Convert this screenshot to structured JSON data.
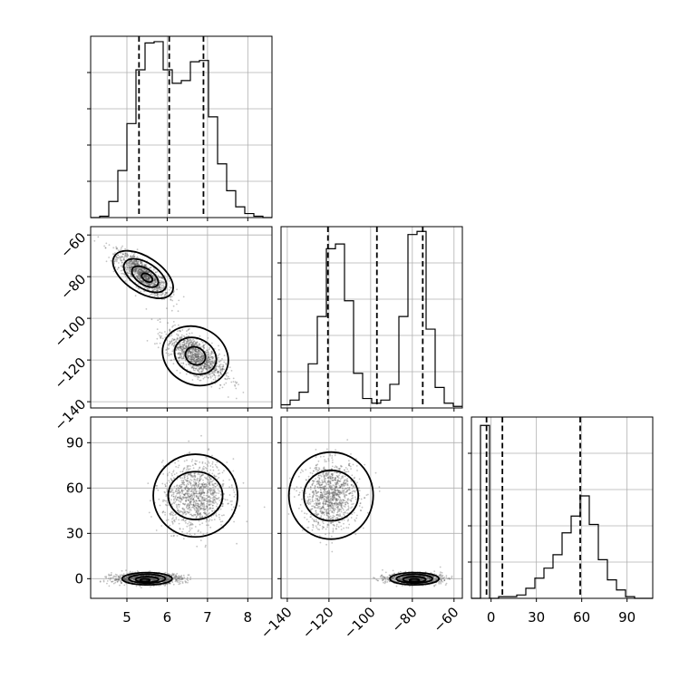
{
  "chart_data": {
    "type": "corner",
    "parameters": [
      {
        "range": [
          4.1,
          8.6
        ],
        "ticks": [
          5,
          6,
          7,
          8
        ],
        "tick_labels": [
          "5",
          "6",
          "7",
          "8"
        ]
      },
      {
        "range": [
          -143,
          -56
        ],
        "ticks": [
          -140,
          -120,
          -100,
          -80,
          -60
        ],
        "tick_labels": [
          "−140",
          "−120",
          "−100",
          "−80",
          "−60"
        ]
      },
      {
        "range": [
          -13,
          107
        ],
        "ticks": [
          0,
          30,
          60,
          90
        ],
        "tick_labels": [
          "0",
          "30",
          "60",
          "90"
        ]
      }
    ],
    "grid": true,
    "histograms": [
      {
        "bin_start": 4.1,
        "bin_width": 0.225,
        "counts": [
          0,
          1,
          12,
          35,
          70,
          110,
          130,
          131,
          110,
          100,
          102,
          116,
          117,
          75,
          40,
          20,
          8,
          3,
          1,
          0
        ],
        "ymax": 135,
        "quantiles": [
          5.3,
          6.05,
          6.9
        ]
      },
      {
        "bin_start": -143,
        "bin_width": 4.35,
        "counts": [
          2,
          5,
          10,
          28,
          58,
          101,
          104,
          68,
          22,
          6,
          3,
          5,
          15,
          58,
          110,
          112,
          50,
          13,
          3,
          1
        ],
        "ymax": 115,
        "quantiles": [
          -120.5,
          -97,
          -75
        ]
      },
      {
        "bin_start": -13,
        "bin_width": 6,
        "counts": [
          0,
          103,
          0,
          1,
          1,
          2,
          6,
          12,
          18,
          26,
          39,
          49,
          61,
          44,
          23,
          11,
          5,
          1,
          0,
          0
        ],
        "ymax": 108,
        "quantiles": [
          -3,
          7.5,
          59
        ]
      }
    ],
    "joint": [
      {
        "x_param": 0,
        "y_param": 1,
        "clusters": [
          {
            "cx": 5.4,
            "cy": -79,
            "sx": 0.32,
            "sy": 5.2,
            "rho": -0.8,
            "n": 1100
          },
          {
            "cx": 6.7,
            "cy": -118,
            "sx": 0.36,
            "sy": 5.8,
            "rho": -0.7,
            "n": 1100
          }
        ],
        "contours": [
          {
            "cx": 5.4,
            "cy": -79,
            "rx": 1.25,
            "ry": 0.45,
            "angle": 33,
            "fill": "#ffffff"
          },
          {
            "cx": 5.45,
            "cy": -79.5,
            "rx": 0.88,
            "ry": 0.32,
            "angle": 33,
            "fill": "#cfcfcf"
          },
          {
            "cx": 5.45,
            "cy": -80,
            "rx": 0.55,
            "ry": 0.2,
            "angle": 33,
            "fill": "#6e6e6e"
          },
          {
            "cx": 5.5,
            "cy": -80.5,
            "rx": 0.22,
            "ry": 0.09,
            "angle": 33,
            "fill": "#000000"
          },
          {
            "cx": 6.7,
            "cy": -118,
            "rx": 1.25,
            "ry": 0.72,
            "angle": 28,
            "fill": "#ffffff"
          },
          {
            "cx": 6.7,
            "cy": -118,
            "rx": 0.8,
            "ry": 0.44,
            "angle": 28,
            "fill": "#cfcfcf"
          },
          {
            "cx": 6.7,
            "cy": -118,
            "rx": 0.38,
            "ry": 0.22,
            "angle": 28,
            "fill": "#666666"
          }
        ]
      },
      {
        "x_param": 0,
        "y_param": 2,
        "clusters": [
          {
            "cx": 6.7,
            "cy": 55,
            "sx": 0.4,
            "sy": 11,
            "rho": 0.05,
            "n": 1100
          },
          {
            "cx": 5.5,
            "cy": 0,
            "sx": 0.42,
            "sy": 1.8,
            "rho": 0.0,
            "n": 1100
          }
        ],
        "contours": [
          {
            "cx": 6.7,
            "cy": 55,
            "rx": 1.55,
            "ry": 0.95,
            "angle": 0,
            "fill": "#ffffff"
          },
          {
            "cx": 6.7,
            "cy": 55,
            "rx": 1.0,
            "ry": 0.55,
            "angle": 0,
            "fill": "#efefef"
          },
          {
            "cx": 5.5,
            "cy": 0,
            "rx": 0.92,
            "ry": 0.14,
            "angle": 0,
            "fill": "#ffffff"
          },
          {
            "cx": 5.5,
            "cy": 0,
            "rx": 0.67,
            "ry": 0.1,
            "angle": 0,
            "fill": "#c4c4c4"
          },
          {
            "cx": 5.5,
            "cy": -0.5,
            "rx": 0.42,
            "ry": 0.065,
            "angle": 0,
            "fill": "#555555"
          },
          {
            "cx": 5.45,
            "cy": -1,
            "rx": 0.18,
            "ry": 0.03,
            "angle": 0,
            "fill": "#000000"
          }
        ]
      },
      {
        "x_param": 1,
        "y_param": 2,
        "clusters": [
          {
            "cx": -119,
            "cy": 55,
            "sx": 6.5,
            "sy": 11,
            "rho": 0.05,
            "n": 1100
          },
          {
            "cx": -79,
            "cy": 0,
            "sx": 6.5,
            "sy": 1.8,
            "rho": 0.0,
            "n": 1100
          }
        ],
        "contours": [
          {
            "cx": -119,
            "cy": 55,
            "rx": 1.55,
            "ry": 1.0,
            "angle": 0,
            "fill": "#ffffff"
          },
          {
            "cx": -119,
            "cy": 55,
            "rx": 1.0,
            "ry": 0.58,
            "angle": 0,
            "fill": "#efefef"
          },
          {
            "cx": -79,
            "cy": 0,
            "rx": 0.9,
            "ry": 0.14,
            "angle": 0,
            "fill": "#ffffff"
          },
          {
            "cx": -79,
            "cy": 0,
            "rx": 0.66,
            "ry": 0.1,
            "angle": 0,
            "fill": "#c4c4c4"
          },
          {
            "cx": -79,
            "cy": -0.5,
            "rx": 0.42,
            "ry": 0.065,
            "angle": 0,
            "fill": "#555555"
          },
          {
            "cx": -79,
            "cy": -1,
            "rx": 0.18,
            "ry": 0.03,
            "angle": 0,
            "fill": "#000000"
          }
        ]
      }
    ]
  }
}
